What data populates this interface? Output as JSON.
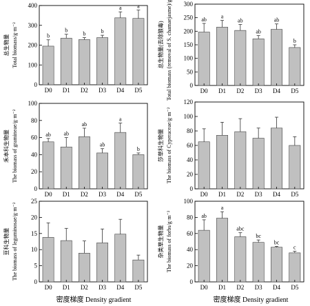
{
  "xlabel": "密度梯度 Density gradient",
  "categories": [
    "D0",
    "D1",
    "D2",
    "D3",
    "D4",
    "D5"
  ],
  "colors": {
    "bar": "#c0c0c0",
    "bar_stroke": "#404040",
    "axis": "#000000"
  },
  "chart_data": [
    {
      "type": "bar",
      "ylabel_cn": "总生物量",
      "ylabel_en": "Total biomass/g·m⁻²",
      "ylim": [
        0,
        400
      ],
      "yticks": [
        0,
        100,
        200,
        300,
        400
      ],
      "values": [
        195,
        235,
        228,
        238,
        338,
        335
      ],
      "errors": [
        32,
        20,
        10,
        12,
        30,
        42
      ],
      "letters": [
        "b",
        "b",
        "b",
        "b",
        "a",
        "a"
      ]
    },
    {
      "type": "bar",
      "ylabel_cn": "总生物量(去除狼毒)",
      "ylabel_en": "Total biomass (removal of S. chamaejasme)/g·m⁻²",
      "ylim": [
        0,
        300
      ],
      "yticks": [
        0,
        50,
        100,
        150,
        200,
        250,
        300
      ],
      "values": [
        197,
        215,
        203,
        172,
        207,
        140
      ],
      "errors": [
        32,
        25,
        22,
        12,
        20,
        10
      ],
      "letters": [
        "ab",
        "a",
        "ab",
        "ab",
        "ab",
        "b"
      ]
    },
    {
      "type": "bar",
      "ylabel_cn": "禾本科生物量",
      "ylabel_en": "The biomass of gramineae/g·m⁻²",
      "ylim": [
        0,
        100
      ],
      "yticks": [
        0,
        20,
        40,
        60,
        80,
        100
      ],
      "values": [
        55,
        49,
        61,
        42,
        66,
        40
      ],
      "errors": [
        4,
        11,
        10,
        5,
        11,
        2
      ],
      "letters": [
        "ab",
        "ab",
        "ab",
        "ab",
        "a",
        "b"
      ]
    },
    {
      "type": "bar",
      "ylabel_cn": "莎草科生物量",
      "ylabel_en": "The biomass of Cyperaceae/g·m⁻²",
      "ylim": [
        0,
        120
      ],
      "yticks": [
        0,
        20,
        40,
        60,
        80,
        100,
        120
      ],
      "values": [
        65,
        74,
        79,
        70,
        84,
        60
      ],
      "errors": [
        18,
        18,
        18,
        14,
        15,
        12
      ],
      "letters": []
    },
    {
      "type": "bar",
      "ylabel_cn": "豆科生物量",
      "ylabel_en": "The biomass of leguminosae/g·m⁻²",
      "ylim": [
        0,
        25
      ],
      "yticks": [
        0,
        5,
        10,
        15,
        20,
        25
      ],
      "values": [
        13.8,
        12.8,
        8.9,
        12.1,
        14.8,
        6.8
      ],
      "errors": [
        4.5,
        3.8,
        3.8,
        4.3,
        4.6,
        1.5
      ],
      "letters": []
    },
    {
      "type": "bar",
      "ylabel_cn": "杂类草生物量",
      "ylabel_en": "The biomass of forbs/g·m⁻²",
      "ylim": [
        0,
        100
      ],
      "yticks": [
        0,
        20,
        40,
        60,
        80,
        100
      ],
      "values": [
        64,
        79,
        56,
        49,
        43,
        36
      ],
      "errors": [
        13,
        8,
        5,
        3,
        1,
        2
      ],
      "letters": [
        "ab",
        "a",
        "abc",
        "bc",
        "bc",
        "c"
      ]
    }
  ]
}
